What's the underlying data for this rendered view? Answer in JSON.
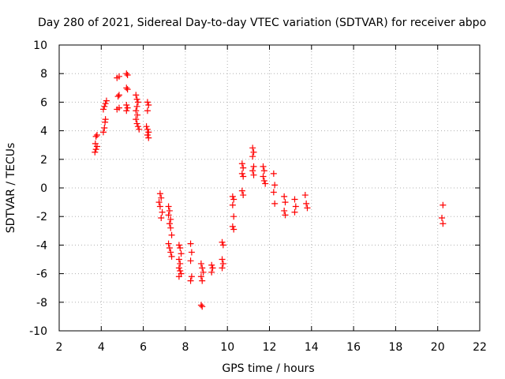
{
  "chart_data": {
    "type": "scatter",
    "title": "Day 280 of 2021, Sidereal Day-to-day VTEC variation (SDTVAR) for receiver abpo",
    "xlabel": "GPS time / hours",
    "ylabel": "SDTVAR / TECUs",
    "xlim": [
      2,
      22
    ],
    "ylim": [
      -10,
      10
    ],
    "xticks": [
      2,
      4,
      6,
      8,
      10,
      12,
      14,
      16,
      18,
      20,
      22
    ],
    "yticks": [
      -10,
      -8,
      -6,
      -4,
      -2,
      0,
      2,
      4,
      6,
      8,
      10
    ],
    "grid": true,
    "marker": "plus",
    "color": "#ff0000",
    "points": [
      [
        3.7,
        2.5
      ],
      [
        3.75,
        2.7
      ],
      [
        3.8,
        2.9
      ],
      [
        3.72,
        3.1
      ],
      [
        3.75,
        3.6
      ],
      [
        3.8,
        3.7
      ],
      [
        4.1,
        3.9
      ],
      [
        4.15,
        4.2
      ],
      [
        4.18,
        4.6
      ],
      [
        4.2,
        4.8
      ],
      [
        4.1,
        5.5
      ],
      [
        4.15,
        5.7
      ],
      [
        4.2,
        5.9
      ],
      [
        4.25,
        6.1
      ],
      [
        4.75,
        5.5
      ],
      [
        4.85,
        5.6
      ],
      [
        4.8,
        6.4
      ],
      [
        4.85,
        6.5
      ],
      [
        4.75,
        7.7
      ],
      [
        4.85,
        7.8
      ],
      [
        5.2,
        8.0
      ],
      [
        5.25,
        7.9
      ],
      [
        5.2,
        7.0
      ],
      [
        5.25,
        6.9
      ],
      [
        5.2,
        5.4
      ],
      [
        5.25,
        5.6
      ],
      [
        5.2,
        5.8
      ],
      [
        5.65,
        6.5
      ],
      [
        5.7,
        6.2
      ],
      [
        5.75,
        6.0
      ],
      [
        5.7,
        5.7
      ],
      [
        5.65,
        5.4
      ],
      [
        5.72,
        5.1
      ],
      [
        5.65,
        4.8
      ],
      [
        5.7,
        4.5
      ],
      [
        5.75,
        4.3
      ],
      [
        5.8,
        4.1
      ],
      [
        6.2,
        6.0
      ],
      [
        6.25,
        5.8
      ],
      [
        6.2,
        5.4
      ],
      [
        6.15,
        4.3
      ],
      [
        6.2,
        4.1
      ],
      [
        6.25,
        3.9
      ],
      [
        6.2,
        3.7
      ],
      [
        6.25,
        3.5
      ],
      [
        6.8,
        -0.4
      ],
      [
        6.85,
        -0.7
      ],
      [
        6.75,
        -1.0
      ],
      [
        6.8,
        -1.3
      ],
      [
        6.9,
        -1.7
      ],
      [
        6.85,
        -2.1
      ],
      [
        7.2,
        -1.3
      ],
      [
        7.25,
        -1.6
      ],
      [
        7.2,
        -1.9
      ],
      [
        7.3,
        -2.2
      ],
      [
        7.25,
        -2.5
      ],
      [
        7.3,
        -2.8
      ],
      [
        7.35,
        -3.3
      ],
      [
        7.2,
        -3.9
      ],
      [
        7.25,
        -4.2
      ],
      [
        7.3,
        -4.5
      ],
      [
        7.35,
        -4.8
      ],
      [
        7.7,
        -4.0
      ],
      [
        7.75,
        -4.2
      ],
      [
        7.8,
        -4.6
      ],
      [
        7.7,
        -5.0
      ],
      [
        7.75,
        -5.3
      ],
      [
        7.7,
        -5.6
      ],
      [
        7.75,
        -5.8
      ],
      [
        7.8,
        -6.0
      ],
      [
        7.7,
        -6.2
      ],
      [
        8.25,
        -3.9
      ],
      [
        8.3,
        -4.5
      ],
      [
        8.25,
        -5.1
      ],
      [
        8.3,
        -6.2
      ],
      [
        8.25,
        -6.5
      ],
      [
        8.75,
        -5.3
      ],
      [
        8.8,
        -5.6
      ],
      [
        8.85,
        -5.9
      ],
      [
        8.75,
        -6.2
      ],
      [
        8.8,
        -6.5
      ],
      [
        8.75,
        -8.2
      ],
      [
        8.8,
        -8.3
      ],
      [
        9.25,
        -5.4
      ],
      [
        9.3,
        -5.6
      ],
      [
        9.25,
        -5.9
      ],
      [
        9.75,
        -3.8
      ],
      [
        9.8,
        -4.0
      ],
      [
        9.75,
        -5.0
      ],
      [
        9.8,
        -5.3
      ],
      [
        9.75,
        -5.6
      ],
      [
        10.25,
        -0.6
      ],
      [
        10.3,
        -0.8
      ],
      [
        10.25,
        -1.2
      ],
      [
        10.3,
        -2.0
      ],
      [
        10.25,
        -2.7
      ],
      [
        10.3,
        -2.9
      ],
      [
        10.7,
        1.7
      ],
      [
        10.75,
        1.4
      ],
      [
        10.7,
        1.0
      ],
      [
        10.75,
        0.8
      ],
      [
        10.7,
        -0.2
      ],
      [
        10.75,
        -0.5
      ],
      [
        11.2,
        2.8
      ],
      [
        11.25,
        2.5
      ],
      [
        11.2,
        2.2
      ],
      [
        11.25,
        1.5
      ],
      [
        11.2,
        1.2
      ],
      [
        11.25,
        0.9
      ],
      [
        11.7,
        1.5
      ],
      [
        11.75,
        1.2
      ],
      [
        11.7,
        0.8
      ],
      [
        11.75,
        0.5
      ],
      [
        11.8,
        0.3
      ],
      [
        12.2,
        1.0
      ],
      [
        12.25,
        0.2
      ],
      [
        12.2,
        -0.3
      ],
      [
        12.25,
        -1.1
      ],
      [
        12.7,
        -0.6
      ],
      [
        12.75,
        -1.0
      ],
      [
        12.7,
        -1.6
      ],
      [
        12.75,
        -1.9
      ],
      [
        13.2,
        -0.8
      ],
      [
        13.25,
        -1.3
      ],
      [
        13.2,
        -1.7
      ],
      [
        13.7,
        -0.5
      ],
      [
        13.75,
        -1.1
      ],
      [
        13.8,
        -1.4
      ],
      [
        20.25,
        -1.2
      ],
      [
        20.2,
        -2.1
      ],
      [
        20.25,
        -2.5
      ]
    ]
  }
}
